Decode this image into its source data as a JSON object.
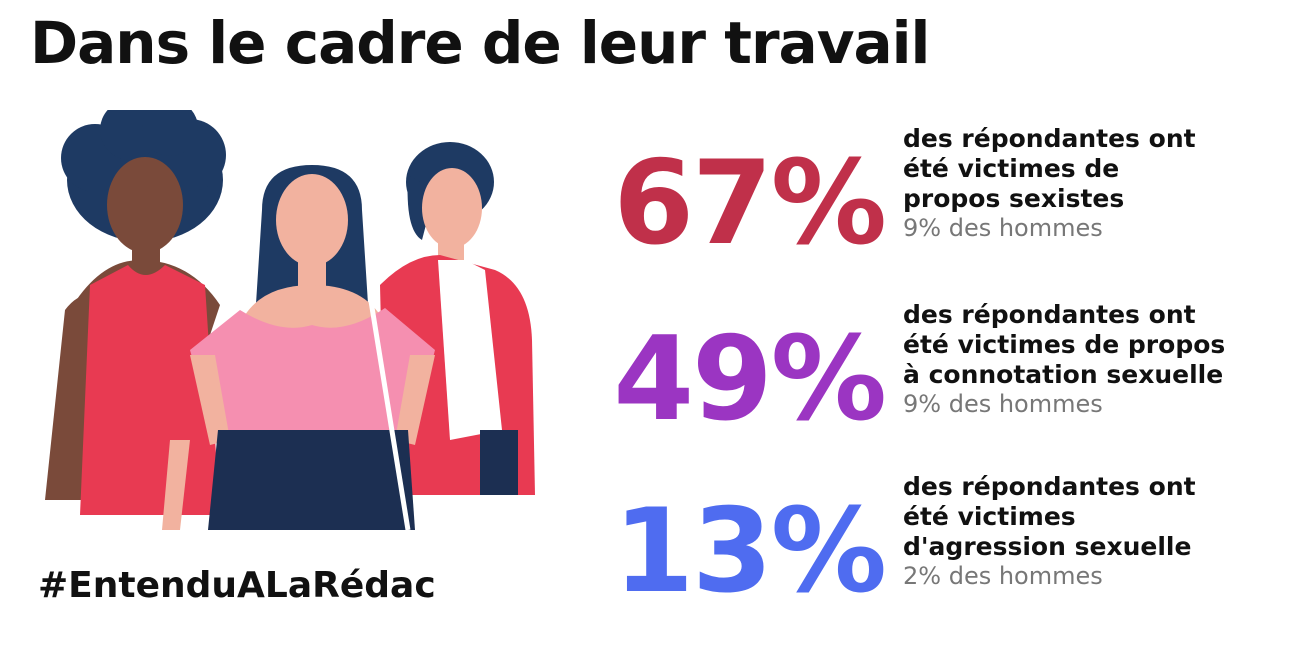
{
  "title": "Dans le cadre de leur travail",
  "hashtag": "#EntenduALaRédac",
  "stats": [
    {
      "value": "67%",
      "color": "#c0304a",
      "lines": [
        "des répondantes ont",
        "été victimes de",
        "propos sexistes"
      ],
      "men": "9% des hommes"
    },
    {
      "value": "49%",
      "color": "#9b35c2",
      "lines": [
        "des répondantes ont",
        "été victimes de propos",
        "à connotation sexuelle"
      ],
      "men": "9% des hommes"
    },
    {
      "value": "13%",
      "color": "#4f6cf0",
      "lines": [
        "des répondantes ont",
        "été victimes",
        "d'agression sexuelle"
      ],
      "men": "2% des hommes"
    }
  ],
  "illustration": {
    "icon": "three-women-illustration",
    "colors": {
      "hair": "#1e3a63",
      "skin_dark": "#7a4a3a",
      "skin_light": "#f2b29f",
      "red": "#e83a52",
      "pink": "#f58fb0",
      "navy": "#1c2f52"
    }
  }
}
